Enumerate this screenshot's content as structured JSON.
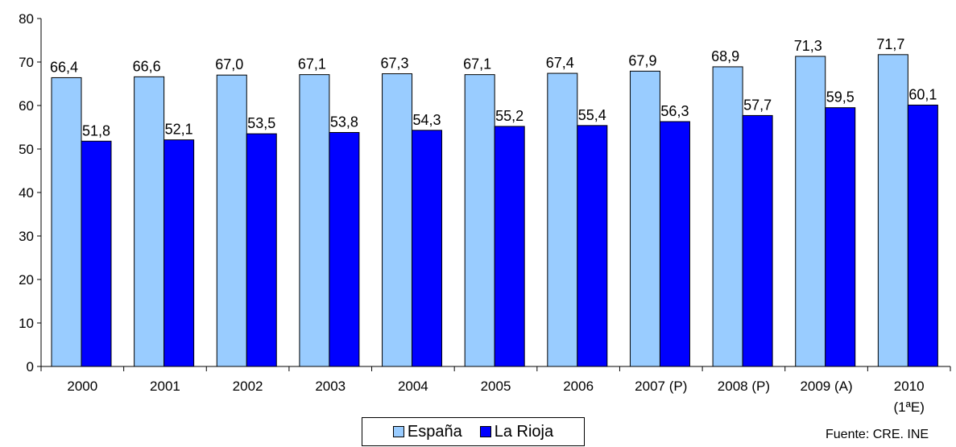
{
  "chart_data": {
    "type": "bar",
    "categories": [
      "2000",
      "2001",
      "2002",
      "2003",
      "2004",
      "2005",
      "2006",
      "2007 (P)",
      "2008 (P)",
      "2009 (A)",
      "2010\n(1ªE)"
    ],
    "series": [
      {
        "name": "España",
        "color": "#99ccff",
        "values": [
          66.4,
          66.6,
          67.0,
          67.1,
          67.3,
          67.1,
          67.4,
          67.9,
          68.9,
          71.3,
          71.7
        ],
        "labels": [
          "66,4",
          "66,6",
          "67,0",
          "67,1",
          "67,3",
          "67,1",
          "67,4",
          "67,9",
          "68,9",
          "71,3",
          "71,7"
        ]
      },
      {
        "name": "La Rioja",
        "color": "#0000ff",
        "values": [
          51.8,
          52.1,
          53.5,
          53.8,
          54.3,
          55.2,
          55.4,
          56.3,
          57.7,
          59.5,
          60.1
        ],
        "labels": [
          "51,8",
          "52,1",
          "53,5",
          "53,8",
          "54,3",
          "55,2",
          "55,4",
          "56,3",
          "57,7",
          "59,5",
          "60,1"
        ]
      }
    ],
    "ylim": [
      0,
      80
    ],
    "yticks": [
      0,
      10,
      20,
      30,
      40,
      50,
      60,
      70,
      80
    ],
    "grid": false,
    "legend_position": "bottom-center",
    "source": "Fuente: CRE. INE"
  }
}
